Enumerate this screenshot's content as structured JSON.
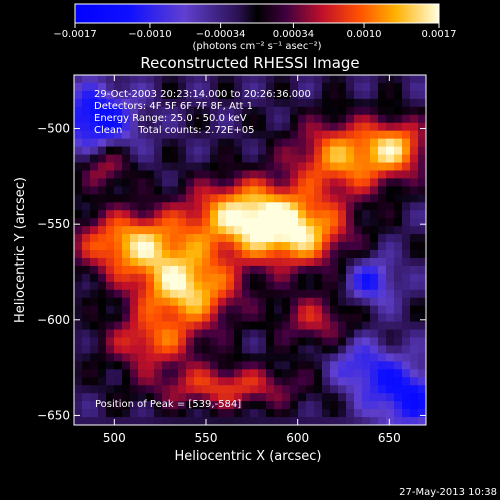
{
  "chart_data": {
    "type": "heatmap",
    "title": "Reconstructed RHESSI Image",
    "xlabel": "Heliocentric X (arcsec)",
    "ylabel": "Heliocentric Y (arcsec)",
    "xlim": [
      478,
      670
    ],
    "ylim": [
      -655,
      -472
    ],
    "x_ticks": [
      500,
      550,
      600,
      650
    ],
    "y_ticks": [
      -500,
      -550,
      -600,
      -650
    ],
    "colorbar": {
      "range": [
        -0.0017,
        0.0017
      ],
      "tick_values": [
        -0.0017,
        -0.001,
        -0.00034,
        0.00034,
        0.001,
        0.0017
      ],
      "tick_labels": [
        "-0.0017",
        "-0.0010",
        "-0.00034",
        "0.00034",
        "0.0010",
        "0.0017"
      ],
      "label": "(photons cm⁻² s⁻¹ asec⁻²)"
    },
    "info_lines": [
      "29-Oct-2003 20:23:14.000 to 20:26:36.000",
      "Detectors: 4F 5F 6F 7F 8F, Att 1",
      "Energy Range: 25.0 - 50.0 keV",
      "Clean     Total counts: 2.72E+05"
    ],
    "peak_label": "Position of Peak = [539,-584]",
    "peak": [
      539,
      -584
    ],
    "emission_blobs": [
      {
        "x": 510,
        "y": -560,
        "sx": 22,
        "sy": 12,
        "amp": 0.0015
      },
      {
        "x": 539,
        "y": -584,
        "sx": 20,
        "sy": 14,
        "amp": 0.0017
      },
      {
        "x": 570,
        "y": -545,
        "sx": 22,
        "sy": 13,
        "amp": 0.0016
      },
      {
        "x": 600,
        "y": -555,
        "sx": 20,
        "sy": 13,
        "amp": 0.0015
      },
      {
        "x": 625,
        "y": -515,
        "sx": 20,
        "sy": 14,
        "amp": 0.0014
      },
      {
        "x": 655,
        "y": -510,
        "sx": 12,
        "sy": 10,
        "amp": 0.0012
      },
      {
        "x": 520,
        "y": -612,
        "sx": 18,
        "sy": 10,
        "amp": 0.001
      },
      {
        "x": 560,
        "y": -635,
        "sx": 30,
        "sy": 8,
        "amp": 0.001
      },
      {
        "x": 610,
        "y": -600,
        "sx": 15,
        "sy": 10,
        "amp": 0.0008
      },
      {
        "x": 495,
        "y": -520,
        "sx": 10,
        "sy": 8,
        "amp": 0.0008
      },
      {
        "x": 640,
        "y": -580,
        "sx": 10,
        "sy": 9,
        "amp": -0.0009
      },
      {
        "x": 490,
        "y": -495,
        "sx": 15,
        "sy": 12,
        "amp": -0.0012
      },
      {
        "x": 660,
        "y": -640,
        "sx": 14,
        "sy": 12,
        "amp": -0.0011
      },
      {
        "x": 635,
        "y": -625,
        "sx": 12,
        "sy": 10,
        "amp": -0.0008
      }
    ]
  },
  "footer": {
    "date": "27-May-2013 10:38"
  }
}
